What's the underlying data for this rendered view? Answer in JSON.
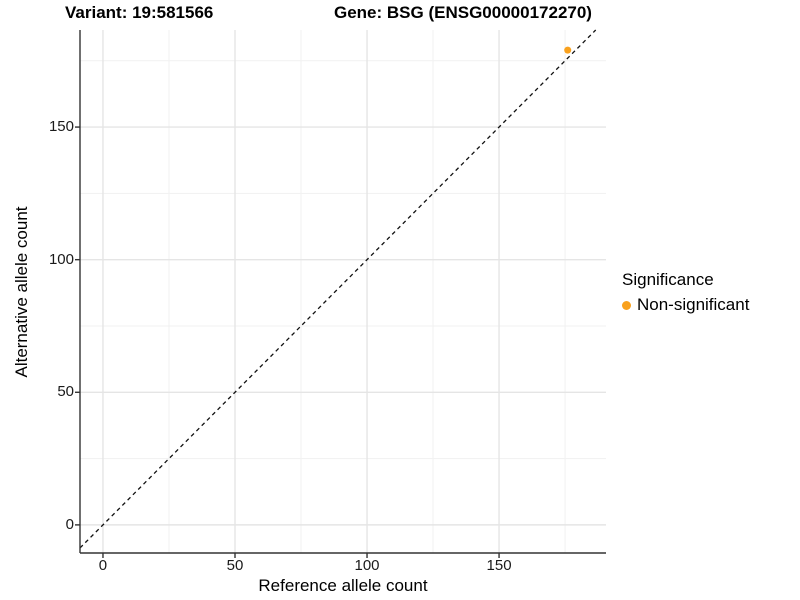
{
  "titles": {
    "variant": "Variant: 19:581566",
    "gene": "Gene: BSG (ENSG00000172270)"
  },
  "chart_data": {
    "type": "scatter",
    "xlabel": "Reference allele count",
    "ylabel": "Alternative allele count",
    "x_ticks": [
      0,
      50,
      100,
      150
    ],
    "y_ticks": [
      0,
      50,
      100,
      150
    ],
    "x_minor_ticks": [
      25,
      75,
      125,
      175
    ],
    "y_minor_ticks": [
      25,
      75,
      125,
      175
    ],
    "xlim": [
      -8.7,
      190.5
    ],
    "ylim": [
      -10.6,
      186.6
    ],
    "series": [
      {
        "name": "Non-significant",
        "color": "#F9A11D",
        "points": [
          {
            "x": 176,
            "y": 179
          }
        ],
        "point_radius": 3.5
      }
    ],
    "reference_line": {
      "kind": "identity y=x",
      "style": "dashed",
      "color": "#111111"
    },
    "legend": {
      "title": "Significance",
      "position": "right",
      "entries": [
        {
          "label": "Non-significant",
          "color": "#F9A11D"
        }
      ]
    },
    "grid": {
      "major_color": "#e5e5e5",
      "minor_color": "#f1f1f1",
      "background": "#ffffff"
    },
    "axis_color": "#333333",
    "tick_length": 5
  }
}
